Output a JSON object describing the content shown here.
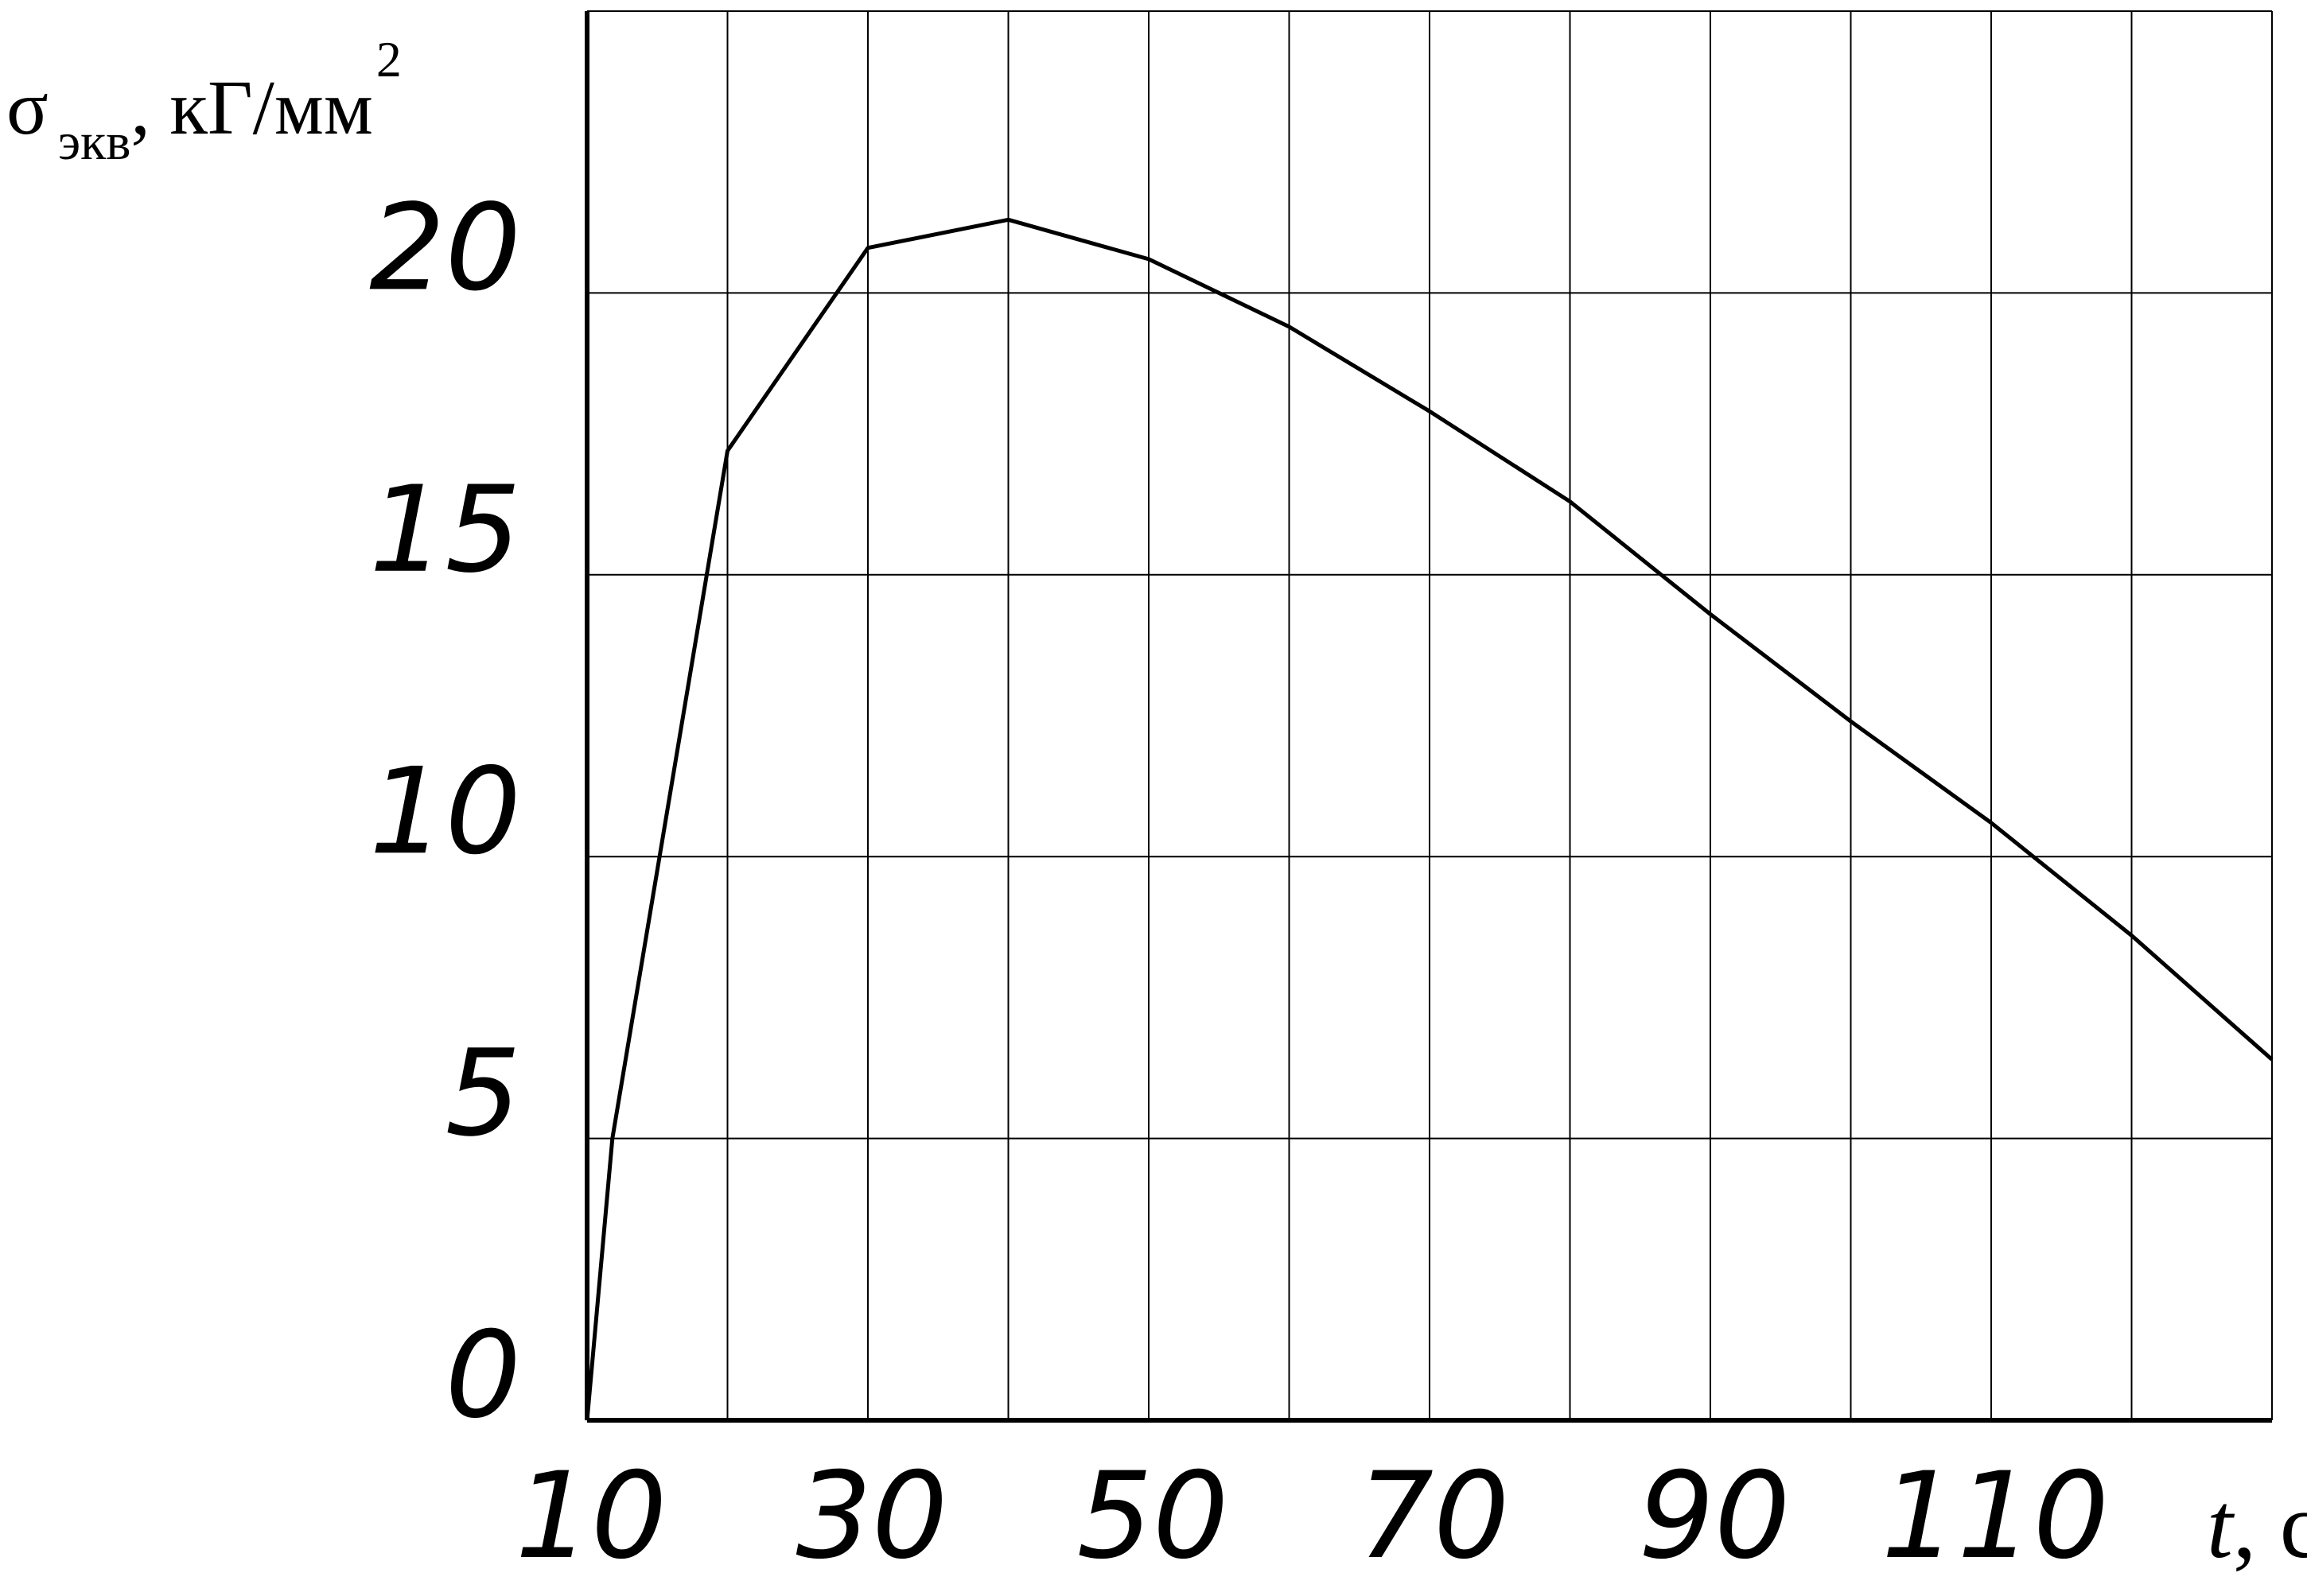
{
  "chart_data": {
    "type": "line",
    "xlabel": {
      "symbol": "t",
      "unit": ", с"
    },
    "ylabel": {
      "symbol": "σ",
      "subscript": "экв",
      "unit": ", кГ/мм",
      "superscript": "2"
    },
    "x_ticks": [
      "10",
      "30",
      "50",
      "70",
      "90",
      "110"
    ],
    "y_ticks": [
      "0",
      "5",
      "10",
      "15",
      "20"
    ],
    "xlim": [
      10,
      130
    ],
    "ylim": [
      0,
      25
    ],
    "x_grid": [
      10,
      20,
      30,
      40,
      50,
      60,
      70,
      80,
      90,
      100,
      110,
      120,
      130
    ],
    "y_grid": [
      0,
      5,
      10,
      15,
      20,
      25
    ],
    "grid": true,
    "series": [
      {
        "x": [
          10,
          11.8,
          20,
          30,
          40,
          50,
          60,
          70,
          80,
          90,
          100,
          110,
          120,
          130
        ],
        "y": [
          0,
          5,
          17.2,
          20.8,
          21.3,
          20.6,
          19.4,
          17.9,
          16.3,
          14.3,
          12.4,
          10.6,
          8.6,
          6.4
        ]
      }
    ]
  }
}
